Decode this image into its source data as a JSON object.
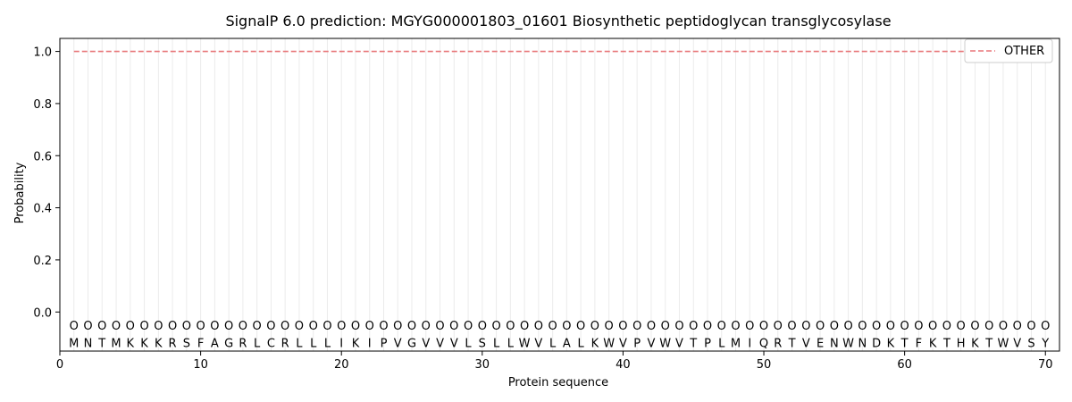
{
  "chart_data": {
    "type": "line",
    "title": "SignalP 6.0 prediction: MGYG000001803_01601 Biosynthetic peptidoglycan transglycosylase",
    "xlabel": "Protein sequence",
    "ylabel": "Probability",
    "xlim": [
      0,
      71
    ],
    "ylim": [
      -0.15,
      1.05
    ],
    "xticks": [
      "0",
      "10",
      "20",
      "30",
      "40",
      "50",
      "60",
      "70"
    ],
    "yticks": [
      "0.0",
      "0.2",
      "0.4",
      "0.6",
      "0.8",
      "1.0"
    ],
    "sequence": [
      "M",
      "N",
      "T",
      "M",
      "K",
      "K",
      "K",
      "R",
      "S",
      "F",
      "A",
      "G",
      "R",
      "L",
      "C",
      "R",
      "L",
      "L",
      "L",
      "I",
      "K",
      "I",
      "P",
      "V",
      "G",
      "V",
      "V",
      "V",
      "L",
      "S",
      "L",
      "L",
      "W",
      "V",
      "L",
      "A",
      "L",
      "K",
      "W",
      "V",
      "P",
      "V",
      "W",
      "V",
      "T",
      "P",
      "L",
      "M",
      "I",
      "Q",
      "R",
      "T",
      "V",
      "E",
      "N",
      "W",
      "N",
      "D",
      "K",
      "T",
      "F",
      "K",
      "T",
      "H",
      "K",
      "T",
      "W",
      "V",
      "S",
      "Y"
    ],
    "position_labels": [
      "O",
      "O",
      "O",
      "O",
      "O",
      "O",
      "O",
      "O",
      "O",
      "O",
      "O",
      "O",
      "O",
      "O",
      "O",
      "O",
      "O",
      "O",
      "O",
      "O",
      "O",
      "O",
      "O",
      "O",
      "O",
      "O",
      "O",
      "O",
      "O",
      "O",
      "O",
      "O",
      "O",
      "O",
      "O",
      "O",
      "O",
      "O",
      "O",
      "O",
      "O",
      "O",
      "O",
      "O",
      "O",
      "O",
      "O",
      "O",
      "O",
      "O",
      "O",
      "O",
      "O",
      "O",
      "O",
      "O",
      "O",
      "O",
      "O",
      "O",
      "O",
      "O",
      "O",
      "O",
      "O",
      "O",
      "O",
      "O",
      "O",
      "O"
    ],
    "series": [
      {
        "name": "OTHER",
        "x_start": 1,
        "x_end": 70,
        "value": 1.0,
        "color": "#e8777a",
        "style": "dashed"
      }
    ],
    "legend": {
      "position": "top-right",
      "entries": [
        "OTHER"
      ]
    },
    "grid": "vertical lines at each residue"
  }
}
